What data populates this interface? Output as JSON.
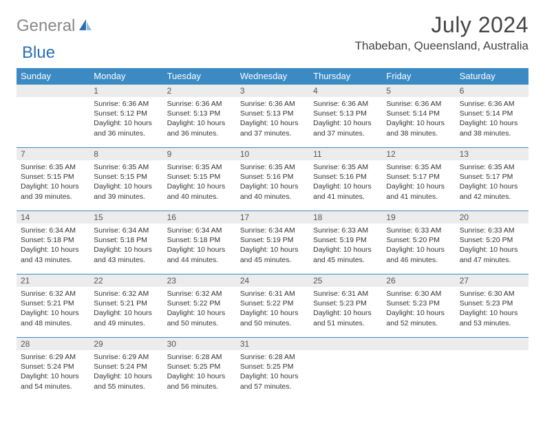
{
  "logo": {
    "gray": "General",
    "blue": "Blue"
  },
  "title": "July 2024",
  "location": "Thabeban, Queensland, Australia",
  "colors": {
    "header_bg": "#3b8ac4",
    "header_text": "#ffffff",
    "daynum_bg": "#ececec",
    "row_border": "#3b8ac4",
    "logo_gray": "#888888",
    "logo_blue": "#2a6fb5"
  },
  "fonts": {
    "title_pt": 32,
    "location_pt": 17,
    "th_pt": 13,
    "body_pt": 10.5
  },
  "weekdays": [
    "Sunday",
    "Monday",
    "Tuesday",
    "Wednesday",
    "Thursday",
    "Friday",
    "Saturday"
  ],
  "weeks": [
    [
      null,
      {
        "d": "1",
        "sr": "Sunrise: 6:36 AM",
        "ss": "Sunset: 5:12 PM",
        "dl": "Daylight: 10 hours and 36 minutes."
      },
      {
        "d": "2",
        "sr": "Sunrise: 6:36 AM",
        "ss": "Sunset: 5:13 PM",
        "dl": "Daylight: 10 hours and 36 minutes."
      },
      {
        "d": "3",
        "sr": "Sunrise: 6:36 AM",
        "ss": "Sunset: 5:13 PM",
        "dl": "Daylight: 10 hours and 37 minutes."
      },
      {
        "d": "4",
        "sr": "Sunrise: 6:36 AM",
        "ss": "Sunset: 5:13 PM",
        "dl": "Daylight: 10 hours and 37 minutes."
      },
      {
        "d": "5",
        "sr": "Sunrise: 6:36 AM",
        "ss": "Sunset: 5:14 PM",
        "dl": "Daylight: 10 hours and 38 minutes."
      },
      {
        "d": "6",
        "sr": "Sunrise: 6:36 AM",
        "ss": "Sunset: 5:14 PM",
        "dl": "Daylight: 10 hours and 38 minutes."
      }
    ],
    [
      {
        "d": "7",
        "sr": "Sunrise: 6:35 AM",
        "ss": "Sunset: 5:15 PM",
        "dl": "Daylight: 10 hours and 39 minutes."
      },
      {
        "d": "8",
        "sr": "Sunrise: 6:35 AM",
        "ss": "Sunset: 5:15 PM",
        "dl": "Daylight: 10 hours and 39 minutes."
      },
      {
        "d": "9",
        "sr": "Sunrise: 6:35 AM",
        "ss": "Sunset: 5:15 PM",
        "dl": "Daylight: 10 hours and 40 minutes."
      },
      {
        "d": "10",
        "sr": "Sunrise: 6:35 AM",
        "ss": "Sunset: 5:16 PM",
        "dl": "Daylight: 10 hours and 40 minutes."
      },
      {
        "d": "11",
        "sr": "Sunrise: 6:35 AM",
        "ss": "Sunset: 5:16 PM",
        "dl": "Daylight: 10 hours and 41 minutes."
      },
      {
        "d": "12",
        "sr": "Sunrise: 6:35 AM",
        "ss": "Sunset: 5:17 PM",
        "dl": "Daylight: 10 hours and 41 minutes."
      },
      {
        "d": "13",
        "sr": "Sunrise: 6:35 AM",
        "ss": "Sunset: 5:17 PM",
        "dl": "Daylight: 10 hours and 42 minutes."
      }
    ],
    [
      {
        "d": "14",
        "sr": "Sunrise: 6:34 AM",
        "ss": "Sunset: 5:18 PM",
        "dl": "Daylight: 10 hours and 43 minutes."
      },
      {
        "d": "15",
        "sr": "Sunrise: 6:34 AM",
        "ss": "Sunset: 5:18 PM",
        "dl": "Daylight: 10 hours and 43 minutes."
      },
      {
        "d": "16",
        "sr": "Sunrise: 6:34 AM",
        "ss": "Sunset: 5:18 PM",
        "dl": "Daylight: 10 hours and 44 minutes."
      },
      {
        "d": "17",
        "sr": "Sunrise: 6:34 AM",
        "ss": "Sunset: 5:19 PM",
        "dl": "Daylight: 10 hours and 45 minutes."
      },
      {
        "d": "18",
        "sr": "Sunrise: 6:33 AM",
        "ss": "Sunset: 5:19 PM",
        "dl": "Daylight: 10 hours and 45 minutes."
      },
      {
        "d": "19",
        "sr": "Sunrise: 6:33 AM",
        "ss": "Sunset: 5:20 PM",
        "dl": "Daylight: 10 hours and 46 minutes."
      },
      {
        "d": "20",
        "sr": "Sunrise: 6:33 AM",
        "ss": "Sunset: 5:20 PM",
        "dl": "Daylight: 10 hours and 47 minutes."
      }
    ],
    [
      {
        "d": "21",
        "sr": "Sunrise: 6:32 AM",
        "ss": "Sunset: 5:21 PM",
        "dl": "Daylight: 10 hours and 48 minutes."
      },
      {
        "d": "22",
        "sr": "Sunrise: 6:32 AM",
        "ss": "Sunset: 5:21 PM",
        "dl": "Daylight: 10 hours and 49 minutes."
      },
      {
        "d": "23",
        "sr": "Sunrise: 6:32 AM",
        "ss": "Sunset: 5:22 PM",
        "dl": "Daylight: 10 hours and 50 minutes."
      },
      {
        "d": "24",
        "sr": "Sunrise: 6:31 AM",
        "ss": "Sunset: 5:22 PM",
        "dl": "Daylight: 10 hours and 50 minutes."
      },
      {
        "d": "25",
        "sr": "Sunrise: 6:31 AM",
        "ss": "Sunset: 5:23 PM",
        "dl": "Daylight: 10 hours and 51 minutes."
      },
      {
        "d": "26",
        "sr": "Sunrise: 6:30 AM",
        "ss": "Sunset: 5:23 PM",
        "dl": "Daylight: 10 hours and 52 minutes."
      },
      {
        "d": "27",
        "sr": "Sunrise: 6:30 AM",
        "ss": "Sunset: 5:23 PM",
        "dl": "Daylight: 10 hours and 53 minutes."
      }
    ],
    [
      {
        "d": "28",
        "sr": "Sunrise: 6:29 AM",
        "ss": "Sunset: 5:24 PM",
        "dl": "Daylight: 10 hours and 54 minutes."
      },
      {
        "d": "29",
        "sr": "Sunrise: 6:29 AM",
        "ss": "Sunset: 5:24 PM",
        "dl": "Daylight: 10 hours and 55 minutes."
      },
      {
        "d": "30",
        "sr": "Sunrise: 6:28 AM",
        "ss": "Sunset: 5:25 PM",
        "dl": "Daylight: 10 hours and 56 minutes."
      },
      {
        "d": "31",
        "sr": "Sunrise: 6:28 AM",
        "ss": "Sunset: 5:25 PM",
        "dl": "Daylight: 10 hours and 57 minutes."
      },
      null,
      null,
      null
    ]
  ]
}
